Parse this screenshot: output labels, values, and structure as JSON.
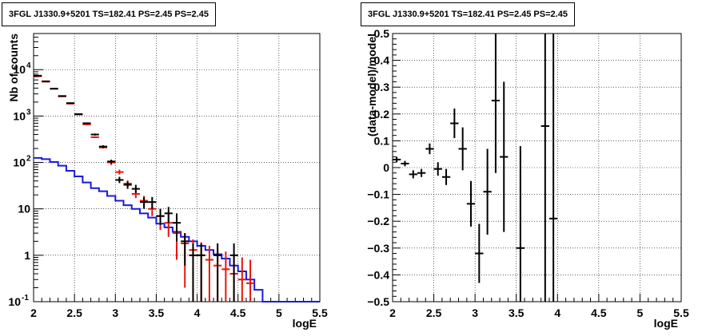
{
  "chart_data": [
    {
      "type": "step",
      "title": "3FGL J1330.9+5201 TS=182.41 PS=2.45 PS=2.45",
      "xlabel": "logE",
      "ylabel": "Nb of counts",
      "xlim": [
        2,
        5.5
      ],
      "ylim": [
        0.1,
        60000
      ],
      "yscale": "log",
      "xticks": [
        "2",
        "2.5",
        "3",
        "3.5",
        "4",
        "4.5",
        "5",
        "5.5"
      ],
      "yticks": [
        {
          "label": "10",
          "sup": "-1",
          "value": 0.1
        },
        {
          "label": "1",
          "sup": "",
          "value": 1
        },
        {
          "label": "10",
          "sup": "",
          "value": 10
        },
        {
          "label": "10",
          "sup": "2",
          "value": 100
        },
        {
          "label": "10",
          "sup": "3",
          "value": 1000
        },
        {
          "label": "10",
          "sup": "4",
          "value": 10000
        }
      ],
      "grid": true,
      "series": [
        {
          "kind": "data",
          "color": "#000000",
          "points": [
            {
              "x": 2.05,
              "y": 7400,
              "lo": 7320,
              "hi": 7480
            },
            {
              "x": 2.15,
              "y": 5600,
              "lo": 5530,
              "hi": 5670
            },
            {
              "x": 2.25,
              "y": 3900,
              "lo": 3840,
              "hi": 3960
            },
            {
              "x": 2.35,
              "y": 2700,
              "lo": 2650,
              "hi": 2750
            },
            {
              "x": 2.45,
              "y": 1900,
              "lo": 1860,
              "hi": 1940
            },
            {
              "x": 2.55,
              "y": 1100,
              "lo": 1070,
              "hi": 1130
            },
            {
              "x": 2.65,
              "y": 700,
              "lo": 675,
              "hi": 725
            },
            {
              "x": 2.75,
              "y": 400,
              "lo": 380,
              "hi": 420
            },
            {
              "x": 2.85,
              "y": 220,
              "lo": 205,
              "hi": 235
            },
            {
              "x": 2.95,
              "y": 105,
              "lo": 95,
              "hi": 115
            },
            {
              "x": 3.05,
              "y": 42,
              "lo": 36,
              "hi": 49
            },
            {
              "x": 3.15,
              "y": 33,
              "lo": 27,
              "hi": 39
            },
            {
              "x": 3.25,
              "y": 27,
              "lo": 22,
              "hi": 33
            },
            {
              "x": 3.35,
              "y": 14,
              "lo": 10,
              "hi": 18
            },
            {
              "x": 3.45,
              "y": 14,
              "lo": 10,
              "hi": 18
            },
            {
              "x": 3.55,
              "y": 7,
              "lo": 4.5,
              "hi": 10
            },
            {
              "x": 3.65,
              "y": 8,
              "lo": 5,
              "hi": 11
            },
            {
              "x": 3.75,
              "y": 5,
              "lo": 2,
              "hi": 8
            },
            {
              "x": 3.85,
              "y": 2,
              "lo": 0.6,
              "hi": 3
            },
            {
              "x": 3.95,
              "y": 1,
              "lo": 0.1,
              "hi": 1.8
            },
            {
              "x": 4.05,
              "y": 1,
              "lo": 0.1,
              "hi": 1.8
            },
            {
              "x": 4.25,
              "y": 1,
              "lo": 0.1,
              "hi": 1.8
            },
            {
              "x": 4.45,
              "y": 1,
              "lo": 0.1,
              "hi": 1.8
            }
          ]
        },
        {
          "kind": "model",
          "color": "#e8150a",
          "points": [
            {
              "x": 2.05,
              "y": 7200,
              "lo": 7050,
              "hi": 7350
            },
            {
              "x": 2.15,
              "y": 5500,
              "lo": 5400,
              "hi": 5600
            },
            {
              "x": 2.25,
              "y": 3850,
              "lo": 3780,
              "hi": 3920
            },
            {
              "x": 2.35,
              "y": 2650,
              "lo": 2600,
              "hi": 2700
            },
            {
              "x": 2.45,
              "y": 1850,
              "lo": 1810,
              "hi": 1890
            },
            {
              "x": 2.55,
              "y": 1080,
              "lo": 1050,
              "hi": 1110
            },
            {
              "x": 2.65,
              "y": 660,
              "lo": 640,
              "hi": 680
            },
            {
              "x": 2.75,
              "y": 350,
              "lo": 335,
              "hi": 365
            },
            {
              "x": 2.85,
              "y": 210,
              "lo": 200,
              "hi": 220
            },
            {
              "x": 2.95,
              "y": 100,
              "lo": 88,
              "hi": 112
            },
            {
              "x": 3.05,
              "y": 62,
              "lo": 55,
              "hi": 70
            },
            {
              "x": 3.15,
              "y": 35,
              "lo": 30,
              "hi": 41
            },
            {
              "x": 3.25,
              "y": 21,
              "lo": 17,
              "hi": 25
            },
            {
              "x": 3.35,
              "y": 15,
              "lo": 11,
              "hi": 19
            },
            {
              "x": 3.45,
              "y": 10,
              "lo": 7,
              "hi": 13
            },
            {
              "x": 3.55,
              "y": 7,
              "lo": 3.5,
              "hi": 10
            },
            {
              "x": 3.65,
              "y": 5,
              "lo": 2.5,
              "hi": 7.5
            },
            {
              "x": 3.75,
              "y": 3,
              "lo": 0.8,
              "hi": 5
            },
            {
              "x": 3.85,
              "y": 1.8,
              "lo": 0.2,
              "hi": 3
            },
            {
              "x": 3.95,
              "y": 1.3,
              "lo": 0.1,
              "hi": 2.2
            },
            {
              "x": 4.05,
              "y": 1.0,
              "lo": 0.1,
              "hi": 1.9
            },
            {
              "x": 4.15,
              "y": 0.8,
              "lo": 0.1,
              "hi": 1.6
            },
            {
              "x": 4.25,
              "y": 0.6,
              "lo": 0.1,
              "hi": 1.4
            },
            {
              "x": 4.35,
              "y": 0.5,
              "lo": 0.1,
              "hi": 1.2
            },
            {
              "x": 4.45,
              "y": 0.4,
              "lo": 0.1,
              "hi": 1.0
            },
            {
              "x": 4.55,
              "y": 0.3,
              "lo": 0.1,
              "hi": 0.9
            },
            {
              "x": 4.65,
              "y": 0.25,
              "lo": 0.1,
              "hi": 0.8
            }
          ]
        },
        {
          "kind": "histogram",
          "color": "#1a1adc",
          "edges": [
            2.0,
            2.1,
            2.2,
            2.3,
            2.4,
            2.5,
            2.6,
            2.7,
            2.8,
            2.9,
            3.0,
            3.1,
            3.2,
            3.3,
            3.4,
            3.5,
            3.6,
            3.7,
            3.8,
            3.9,
            4.0,
            4.1,
            4.2,
            4.3,
            4.4,
            4.5,
            4.6,
            4.7,
            4.8,
            4.9,
            5.0,
            5.1,
            5.2,
            5.3,
            5.4,
            5.5
          ],
          "values": [
            125,
            118,
            102,
            85,
            66,
            50,
            37,
            28,
            24,
            19,
            15,
            12,
            10,
            8,
            6.5,
            4.8,
            4.0,
            3.2,
            2.5,
            2.0,
            1.6,
            1.3,
            1.05,
            0.85,
            0.6,
            0.45,
            0.3,
            0.18,
            0.1,
            0.1,
            0.1,
            0.1,
            0.1,
            0.1,
            0.1
          ]
        }
      ]
    },
    {
      "type": "errorbar",
      "title": "3FGL J1330.9+5201 TS=182.41 PS=2.45 PS=2.45",
      "xlabel": "logE",
      "ylabel": "(data-model)/model",
      "xlim": [
        2,
        5.5
      ],
      "ylim": [
        -0.5,
        0.5
      ],
      "xticks": [
        "2",
        "2.5",
        "3",
        "3.5",
        "4",
        "4.5",
        "5",
        "5.5"
      ],
      "yticks": [
        "−0.5",
        "−0.4",
        "−0.3",
        "−0.2",
        "−0.1",
        "0",
        "0.1",
        "0.2",
        "0.3",
        "0.4",
        "0.5"
      ],
      "grid": true,
      "series": [
        {
          "kind": "residual",
          "color": "#000000",
          "points": [
            {
              "x": 2.05,
              "y": 0.03,
              "lo": 0.02,
              "hi": 0.04
            },
            {
              "x": 2.15,
              "y": 0.015,
              "lo": 0.005,
              "hi": 0.025
            },
            {
              "x": 2.25,
              "y": -0.025,
              "lo": -0.04,
              "hi": -0.01
            },
            {
              "x": 2.35,
              "y": -0.02,
              "lo": -0.035,
              "hi": -0.005
            },
            {
              "x": 2.45,
              "y": 0.07,
              "lo": 0.05,
              "hi": 0.09
            },
            {
              "x": 2.55,
              "y": -0.005,
              "lo": -0.03,
              "hi": 0.02
            },
            {
              "x": 2.65,
              "y": -0.035,
              "lo": -0.065,
              "hi": -0.005
            },
            {
              "x": 2.75,
              "y": 0.165,
              "lo": 0.11,
              "hi": 0.22
            },
            {
              "x": 2.85,
              "y": 0.07,
              "lo": -0.01,
              "hi": 0.15
            },
            {
              "x": 2.95,
              "y": -0.135,
              "lo": -0.22,
              "hi": -0.05
            },
            {
              "x": 3.05,
              "y": -0.32,
              "lo": -0.43,
              "hi": -0.21
            },
            {
              "x": 3.15,
              "y": -0.09,
              "lo": -0.25,
              "hi": 0.07
            },
            {
              "x": 3.25,
              "y": 0.25,
              "lo": -0.02,
              "hi": 0.52
            },
            {
              "x": 3.35,
              "y": 0.04,
              "lo": -0.24,
              "hi": 0.32
            },
            {
              "x": 3.55,
              "y": -0.3,
              "lo": -0.7,
              "hi": 0.08
            },
            {
              "x": 3.85,
              "y": 0.155,
              "lo": -0.7,
              "hi": 0.7
            },
            {
              "x": 3.95,
              "y": -0.19,
              "lo": -0.7,
              "hi": 0.7
            }
          ]
        }
      ]
    }
  ]
}
